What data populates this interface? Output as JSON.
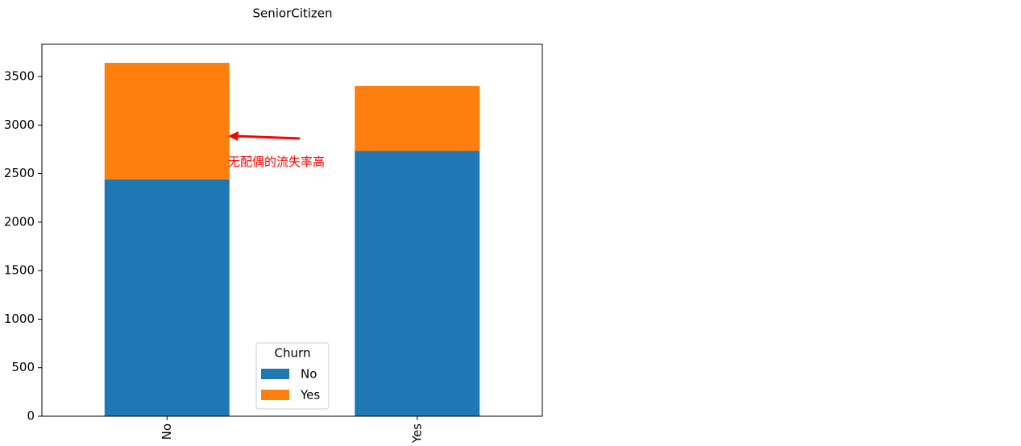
{
  "chart_data": {
    "type": "stacked_bar",
    "title": "SeniorCitizen",
    "categories": [
      "No",
      "Yes"
    ],
    "series": [
      {
        "name": "No",
        "color": "#1f77b4",
        "values": [
          2441,
          2733
        ]
      },
      {
        "name": "Yes",
        "color": "#ff7f0e",
        "values": [
          1200,
          669
        ]
      }
    ],
    "legend_title": "Churn",
    "legend_position": "lower center",
    "ylim": [
      0,
      3832
    ],
    "yticks": [
      0,
      500,
      1000,
      1500,
      2000,
      2500,
      3000,
      3500
    ],
    "annotation": "无配偶的流失率高",
    "annotation_color": "#ff0000"
  }
}
